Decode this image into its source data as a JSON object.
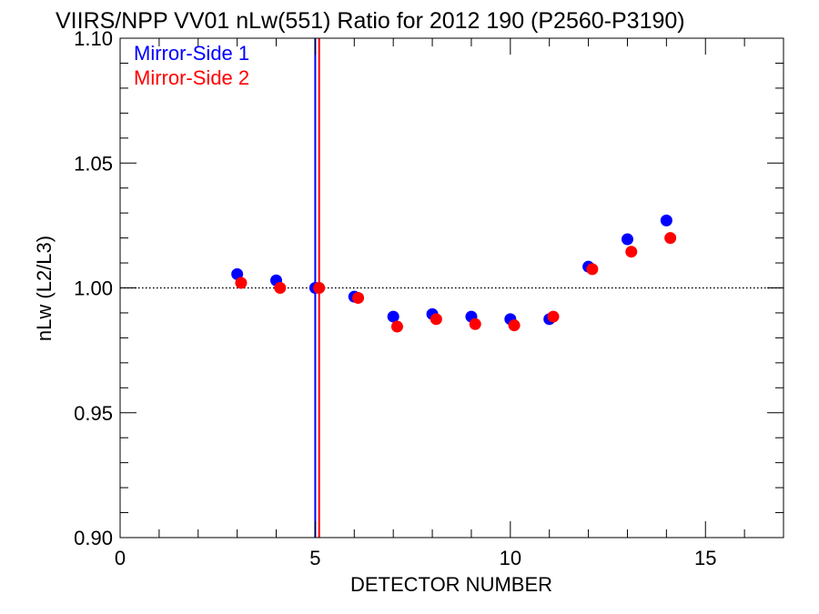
{
  "chart_data": {
    "type": "scatter",
    "title": "VIIRS/NPP VV01 nLw(551) Ratio for 2012 190 (P2560-P3190)",
    "xlabel": "DETECTOR NUMBER",
    "ylabel": "nLw (L2/L3)",
    "xlim": [
      0,
      17
    ],
    "ylim": [
      0.9,
      1.1
    ],
    "x_ticks": [
      {
        "value": 0,
        "label": "0"
      },
      {
        "value": 5,
        "label": "5"
      },
      {
        "value": 10,
        "label": "10"
      },
      {
        "value": 15,
        "label": "15"
      }
    ],
    "y_ticks": [
      {
        "value": 0.9,
        "label": "0.90"
      },
      {
        "value": 0.95,
        "label": "0.95"
      },
      {
        "value": 1.0,
        "label": "1.00"
      },
      {
        "value": 1.05,
        "label": "1.05"
      },
      {
        "value": 1.1,
        "label": "1.10"
      }
    ],
    "reference_line": {
      "y": 1.0,
      "style": "dotted",
      "color": "#000000"
    },
    "vertical_lines": [
      {
        "x": 5.0,
        "color": "#0000ff"
      },
      {
        "x": 5.1,
        "color": "#ff0000"
      }
    ],
    "legend_position": "top-left",
    "grid": false,
    "series": [
      {
        "name": "Mirror-Side 1",
        "color": "#0000ff",
        "x": [
          3,
          4,
          5,
          6,
          7,
          8,
          9,
          10,
          11,
          12,
          13,
          14
        ],
        "y": [
          1.0055,
          1.003,
          1.0,
          0.9965,
          0.9885,
          0.9895,
          0.9885,
          0.9875,
          0.9875,
          1.0085,
          1.0195,
          1.027
        ]
      },
      {
        "name": "Mirror-Side 2",
        "color": "#ff0000",
        "x": [
          3.1,
          4.1,
          5.1,
          6.1,
          7.1,
          8.1,
          9.1,
          10.1,
          11.1,
          12.1,
          13.1,
          14.1
        ],
        "y": [
          1.002,
          1.0,
          1.0,
          0.996,
          0.9845,
          0.9875,
          0.9855,
          0.985,
          0.9885,
          1.0075,
          1.0145,
          1.02
        ]
      }
    ]
  }
}
